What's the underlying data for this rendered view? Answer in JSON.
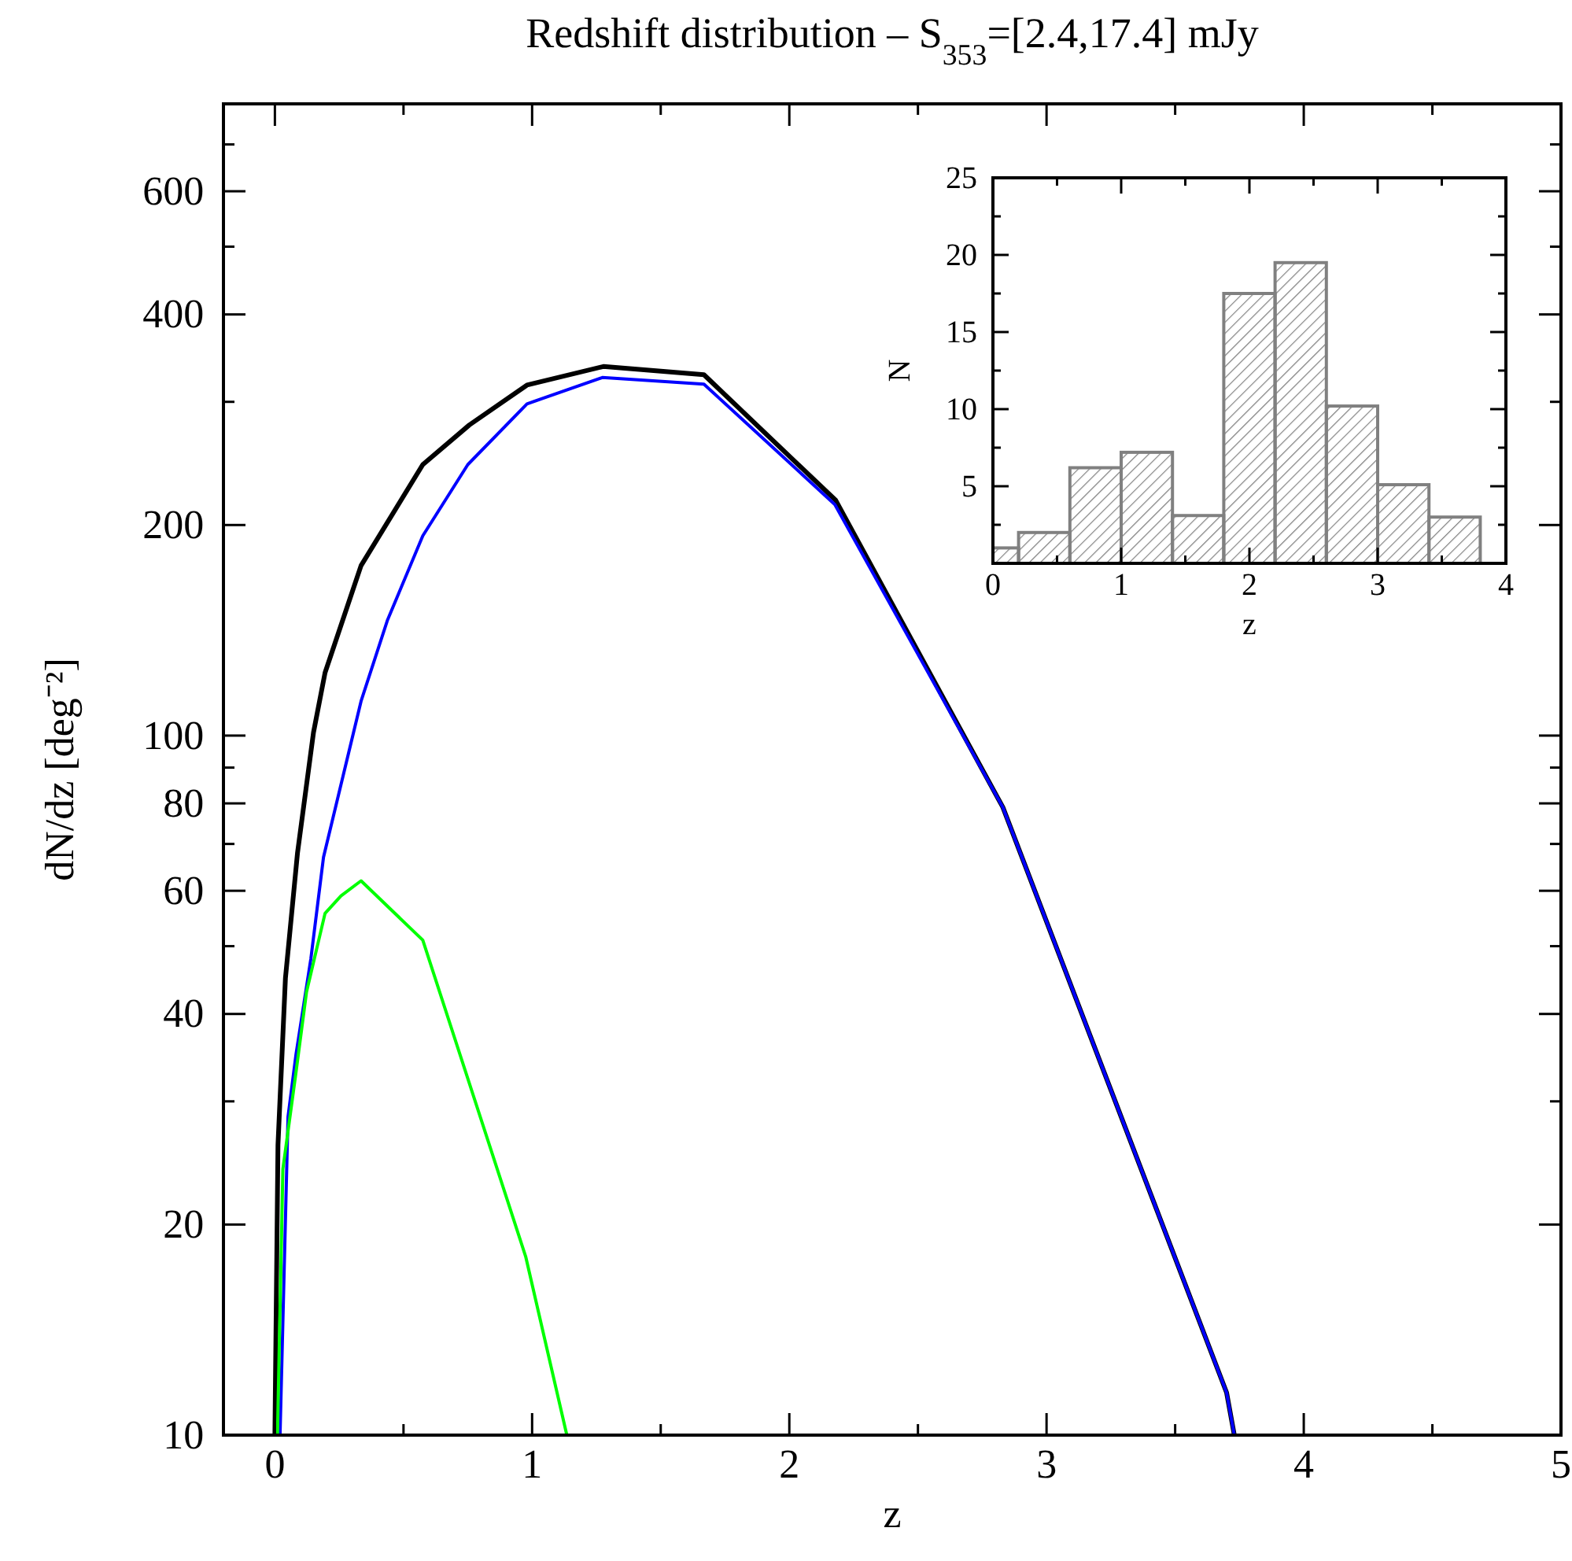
{
  "chart_data": [
    {
      "type": "line",
      "title": "Redshift distribution – S$_{353}$=[2.4,17.4] mJy",
      "xlabel": "z",
      "ylabel": "dN/dz [deg⁻²]",
      "log": true,
      "xlim": [
        -0.2,
        5
      ],
      "ylim": [
        10,
        800
      ],
      "xticks": [
        0,
        {
          "value": 0.5,
          "label": null
        },
        1,
        {
          "value": 1.5,
          "label": null
        },
        2,
        {
          "value": 2.5,
          "label": null
        },
        3,
        {
          "value": 3.5,
          "label": null
        },
        4,
        {
          "value": 4.5,
          "label": null
        },
        5
      ],
      "yticks": [
        10,
        20,
        {
          "value": 30,
          "label": null
        },
        40,
        {
          "value": 50,
          "label": null
        },
        60,
        {
          "value": 70,
          "label": null
        },
        80,
        {
          "value": 90,
          "label": null
        },
        100,
        200,
        {
          "value": 300,
          "label": null
        },
        400,
        {
          "value": 500,
          "label": null
        },
        600,
        {
          "value": 700,
          "label": null
        },
        {
          "value": 800,
          "label": null
        }
      ],
      "series": [
        {
          "color": "#000000",
          "x": [
            0,
            0.012,
            0.041,
            0.088,
            0.15,
            0.195,
            0.335,
            0.575,
            0.756,
            0.98,
            1.277,
            1.668,
            2.18,
            2.83,
            3.7,
            3.73
          ],
          "values": [
            10,
            26,
            45,
            68,
            101,
            123,
            175,
            244,
            278,
            317,
            337,
            328,
            217,
            79,
            11.5,
            10
          ]
        },
        {
          "color": "#0000ff",
          "x": [
            0.02,
            0.051,
            0.082,
            0.14,
            0.189,
            0.335,
            0.437,
            0.575,
            0.75,
            0.98,
            1.273,
            1.668,
            2.177,
            2.83,
            3.7,
            3.73
          ],
          "values": [
            10,
            28.5,
            35,
            48,
            67,
            112,
            146,
            193,
            244,
            298,
            325,
            318,
            214,
            79,
            11.5,
            10
          ]
        },
        {
          "color": "#00ff00",
          "x": [
            0.01,
            0.031,
            0.082,
            0.123,
            0.195,
            0.257,
            0.335,
            0.575,
            0.975,
            1.135
          ],
          "values": [
            10,
            24,
            33,
            43,
            55.7,
            59,
            62,
            51,
            18,
            10
          ]
        }
      ]
    },
    {
      "type": "histogram",
      "xlabel": "z",
      "ylabel": "N",
      "color": "#808080",
      "bins": [
        0,
        0.2,
        0.6,
        1.0,
        1.4,
        1.8,
        2.2,
        2.6,
        3.0,
        3.4,
        3.8
      ],
      "values": [
        1,
        2,
        6.2,
        7.2,
        3.1,
        17.5,
        19.5,
        10.2,
        5.1,
        3
      ],
      "xlim": [
        0,
        4
      ],
      "ylim": [
        0,
        25
      ],
      "xticks": [
        0,
        {
          "value": 0.5,
          "label": null
        },
        1,
        {
          "value": 1.5,
          "label": null
        },
        2,
        {
          "value": 2.5,
          "label": null
        },
        3,
        {
          "value": 3.5,
          "label": null
        },
        4
      ],
      "yticks": [
        {
          "value": 2.5,
          "label": null
        },
        5,
        {
          "value": 7.5,
          "label": null
        },
        10,
        {
          "value": 12.5,
          "label": null
        },
        15,
        {
          "value": 17.5,
          "label": null
        },
        20,
        {
          "value": 22.5,
          "label": null
        },
        25
      ]
    }
  ]
}
